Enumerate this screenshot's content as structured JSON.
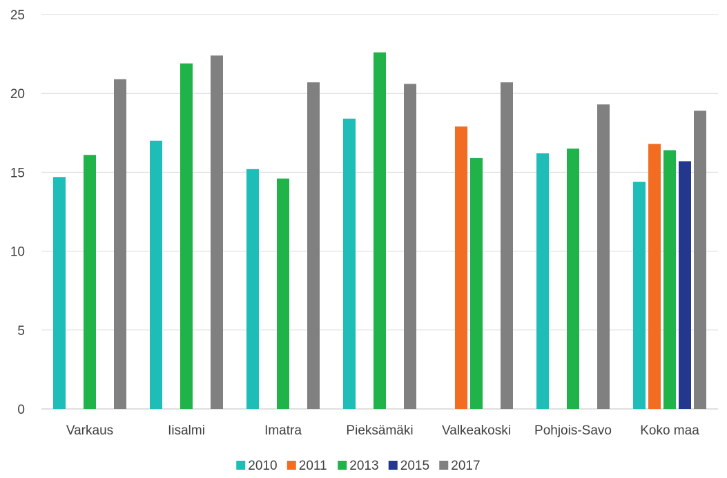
{
  "chart_data": {
    "type": "bar",
    "title": "",
    "xlabel": "",
    "ylabel": "",
    "ylim": [
      0,
      25
    ],
    "yticks": [
      0,
      5,
      10,
      15,
      20,
      25
    ],
    "grid": "horizontal",
    "legend_position": "bottom",
    "categories": [
      "Varkaus",
      "Iisalmi",
      "Imatra",
      "Pieksämäki",
      "Valkeakoski",
      "Pohjois-Savo",
      "Koko maa"
    ],
    "series": [
      {
        "name": "2010",
        "color": "#1fbdb8",
        "values": [
          14.7,
          17.0,
          15.2,
          18.4,
          null,
          16.2,
          14.4
        ]
      },
      {
        "name": "2011",
        "color": "#f26d21",
        "values": [
          null,
          null,
          null,
          null,
          17.9,
          null,
          16.8
        ]
      },
      {
        "name": "2013",
        "color": "#1fb34a",
        "values": [
          16.1,
          21.9,
          14.6,
          22.6,
          15.9,
          16.5,
          16.4
        ]
      },
      {
        "name": "2015",
        "color": "#23378f",
        "values": [
          null,
          null,
          null,
          null,
          null,
          null,
          15.7
        ]
      },
      {
        "name": "2017",
        "color": "#808080",
        "values": [
          20.9,
          22.4,
          20.7,
          20.6,
          20.7,
          19.3,
          18.9
        ]
      }
    ]
  }
}
